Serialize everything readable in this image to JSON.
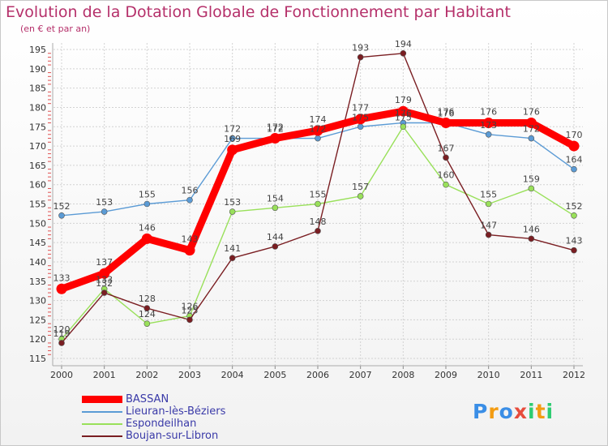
{
  "chart_data": {
    "type": "line",
    "title": "Evolution de la Dotation Globale de Fonctionnement par Habitant",
    "subtitle": "(en € et par an)",
    "xlabel": "",
    "ylabel": "",
    "x": [
      "2000",
      "2001",
      "2002",
      "2003",
      "2004",
      "2005",
      "2006",
      "2007",
      "2008",
      "2009",
      "2010",
      "2011",
      "2012"
    ],
    "ylim": [
      115,
      195
    ],
    "yticks": [
      115,
      120,
      125,
      130,
      135,
      140,
      145,
      150,
      155,
      160,
      165,
      170,
      175,
      180,
      185,
      190,
      195
    ],
    "grid": true,
    "legend_position": "bottom-left",
    "series": [
      {
        "name": "BASSAN",
        "color": "#ff0000",
        "emphasis": true,
        "values": [
          133,
          137,
          146,
          143,
          169,
          172,
          174,
          177,
          179,
          176,
          176,
          176,
          170
        ]
      },
      {
        "name": "Lieuran-lès-Béziers",
        "color": "#5b9bd5",
        "emphasis": false,
        "values": [
          152,
          153,
          155,
          156,
          172,
          172,
          172,
          175,
          176,
          176,
          173,
          172,
          164
        ]
      },
      {
        "name": "Espondeilhan",
        "color": "#99e05a",
        "emphasis": false,
        "values": [
          120,
          133,
          124,
          126,
          153,
          154,
          155,
          157,
          175,
          160,
          155,
          159,
          152
        ]
      },
      {
        "name": "Boujan-sur-Libron",
        "color": "#7a1e22",
        "emphasis": false,
        "values": [
          119,
          132,
          128,
          125,
          141,
          144,
          148,
          193,
          194,
          167,
          147,
          146,
          143
        ]
      }
    ]
  },
  "logo": {
    "letters": [
      "P",
      "r",
      "o",
      "x",
      "i",
      "t",
      "i"
    ],
    "colors": [
      "#3a8ee6",
      "#f39c12",
      "#3a8ee6",
      "#e74c3c",
      "#2ecc71",
      "#f39c12",
      "#2ecc71"
    ]
  }
}
